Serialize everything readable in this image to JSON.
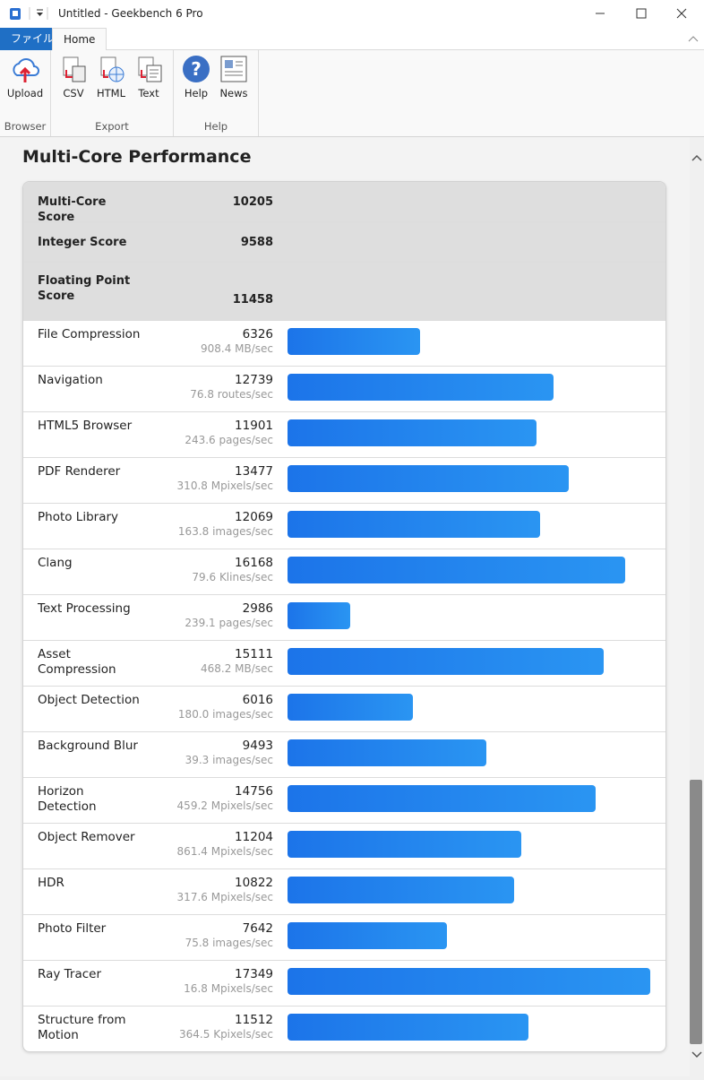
{
  "window": {
    "title": "Untitled - Geekbench 6 Pro"
  },
  "ribbon": {
    "tabs": [
      "ファイル",
      "Home"
    ],
    "groups": [
      {
        "label": "Browser",
        "buttons": [
          "Upload"
        ]
      },
      {
        "label": "Export",
        "buttons": [
          "CSV",
          "HTML",
          "Text"
        ]
      },
      {
        "label": "Help",
        "buttons": [
          "Help",
          "News"
        ]
      }
    ]
  },
  "section_title": "Multi-Core Performance",
  "summary": [
    {
      "name": "Multi-Core Score",
      "score": 10205
    },
    {
      "name": "Integer Score",
      "score": 9588
    },
    {
      "name": "Floating Point Score",
      "score": 11458
    }
  ],
  "workloads": [
    {
      "name": "File Compression",
      "score": 6326,
      "rate": "908.4 MB/sec"
    },
    {
      "name": "Navigation",
      "score": 12739,
      "rate": "76.8 routes/sec"
    },
    {
      "name": "HTML5 Browser",
      "score": 11901,
      "rate": "243.6 pages/sec"
    },
    {
      "name": "PDF Renderer",
      "score": 13477,
      "rate": "310.8 Mpixels/sec"
    },
    {
      "name": "Photo Library",
      "score": 12069,
      "rate": "163.8 images/sec"
    },
    {
      "name": "Clang",
      "score": 16168,
      "rate": "79.6 Klines/sec"
    },
    {
      "name": "Text Processing",
      "score": 2986,
      "rate": "239.1 pages/sec"
    },
    {
      "name": "Asset Compression",
      "score": 15111,
      "rate": "468.2 MB/sec"
    },
    {
      "name": "Object Detection",
      "score": 6016,
      "rate": "180.0 images/sec"
    },
    {
      "name": "Background Blur",
      "score": 9493,
      "rate": "39.3 images/sec"
    },
    {
      "name": "Horizon Detection",
      "score": 14756,
      "rate": "459.2 Mpixels/sec"
    },
    {
      "name": "Object Remover",
      "score": 11204,
      "rate": "861.4 Mpixels/sec"
    },
    {
      "name": "HDR",
      "score": 10822,
      "rate": "317.6 Mpixels/sec"
    },
    {
      "name": "Photo Filter",
      "score": 7642,
      "rate": "75.8 images/sec"
    },
    {
      "name": "Ray Tracer",
      "score": 17349,
      "rate": "16.8 Mpixels/sec"
    },
    {
      "name": "Structure from Motion",
      "score": 11512,
      "rate": "364.5 Kpixels/sec"
    }
  ]
}
